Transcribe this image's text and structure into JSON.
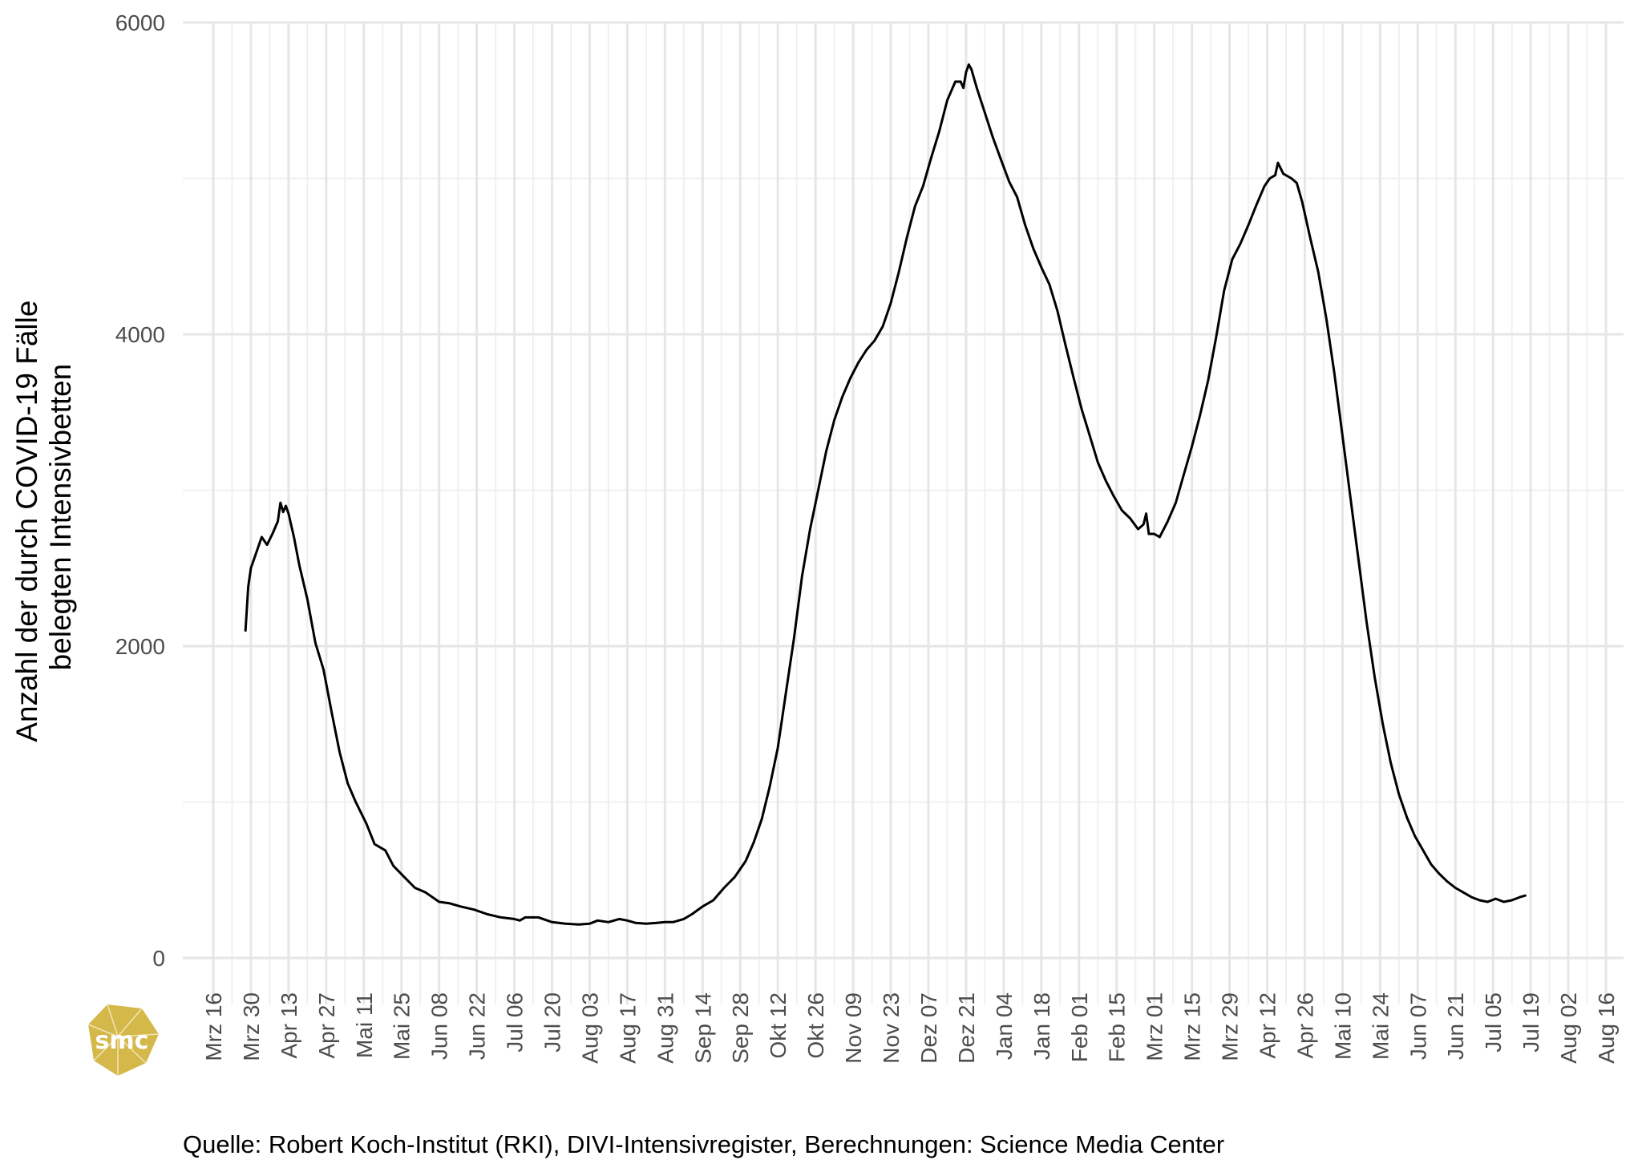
{
  "chart_data": {
    "type": "line",
    "xlabel": "",
    "ylabel": [
      "Anzahl der durch COVID-19 Fälle",
      "belegten Intensivbetten"
    ],
    "ylim": [
      -300,
      6000
    ],
    "y_ticks": [
      0,
      2000,
      4000,
      6000
    ],
    "y_minor_gridlines": [
      1000,
      3000,
      5000
    ],
    "grid": true,
    "x_ticks": [
      {
        "date": "2020-03-16",
        "label": "Mrz 16"
      },
      {
        "date": "2020-03-30",
        "label": "Mrz 30"
      },
      {
        "date": "2020-04-13",
        "label": "Apr 13"
      },
      {
        "date": "2020-04-27",
        "label": "Apr 27"
      },
      {
        "date": "2020-05-11",
        "label": "Mai 11"
      },
      {
        "date": "2020-05-25",
        "label": "Mai 25"
      },
      {
        "date": "2020-06-08",
        "label": "Jun 08"
      },
      {
        "date": "2020-06-22",
        "label": "Jun 22"
      },
      {
        "date": "2020-07-06",
        "label": "Jul 06"
      },
      {
        "date": "2020-07-20",
        "label": "Jul 20"
      },
      {
        "date": "2020-08-03",
        "label": "Aug 03"
      },
      {
        "date": "2020-08-17",
        "label": "Aug 17"
      },
      {
        "date": "2020-08-31",
        "label": "Aug 31"
      },
      {
        "date": "2020-09-14",
        "label": "Sep 14"
      },
      {
        "date": "2020-09-28",
        "label": "Sep 28"
      },
      {
        "date": "2020-10-12",
        "label": "Okt 12"
      },
      {
        "date": "2020-10-26",
        "label": "Okt 26"
      },
      {
        "date": "2020-11-09",
        "label": "Nov 09"
      },
      {
        "date": "2020-11-23",
        "label": "Nov 23"
      },
      {
        "date": "2020-12-07",
        "label": "Dez 07"
      },
      {
        "date": "2020-12-21",
        "label": "Dez 21"
      },
      {
        "date": "2021-01-04",
        "label": "Jan 04"
      },
      {
        "date": "2021-01-18",
        "label": "Jan 18"
      },
      {
        "date": "2021-02-01",
        "label": "Feb 01"
      },
      {
        "date": "2021-02-15",
        "label": "Feb 15"
      },
      {
        "date": "2021-03-01",
        "label": "Mrz 01"
      },
      {
        "date": "2021-03-15",
        "label": "Mrz 15"
      },
      {
        "date": "2021-03-29",
        "label": "Mrz 29"
      },
      {
        "date": "2021-04-12",
        "label": "Apr 12"
      },
      {
        "date": "2021-04-26",
        "label": "Apr 26"
      },
      {
        "date": "2021-05-10",
        "label": "Mai 10"
      },
      {
        "date": "2021-05-24",
        "label": "Mai 24"
      },
      {
        "date": "2021-06-07",
        "label": "Jun 07"
      },
      {
        "date": "2021-06-21",
        "label": "Jun 21"
      },
      {
        "date": "2021-07-05",
        "label": "Jul 05"
      },
      {
        "date": "2021-07-19",
        "label": "Jul 19"
      },
      {
        "date": "2021-08-02",
        "label": "Aug 02"
      },
      {
        "date": "2021-08-16",
        "label": "Aug 16"
      }
    ],
    "series": [
      {
        "color": "#000000",
        "points": [
          [
            "2020-03-28",
            2100
          ],
          [
            "2020-03-29",
            2380
          ],
          [
            "2020-03-30",
            2500
          ],
          [
            "2020-04-01",
            2600
          ],
          [
            "2020-04-03",
            2700
          ],
          [
            "2020-04-05",
            2650
          ],
          [
            "2020-04-07",
            2720
          ],
          [
            "2020-04-09",
            2800
          ],
          [
            "2020-04-10",
            2920
          ],
          [
            "2020-04-11",
            2860
          ],
          [
            "2020-04-12",
            2900
          ],
          [
            "2020-04-13",
            2850
          ],
          [
            "2020-04-15",
            2700
          ],
          [
            "2020-04-17",
            2520
          ],
          [
            "2020-04-20",
            2300
          ],
          [
            "2020-04-23",
            2020
          ],
          [
            "2020-04-26",
            1850
          ],
          [
            "2020-04-29",
            1580
          ],
          [
            "2020-05-02",
            1320
          ],
          [
            "2020-05-05",
            1120
          ],
          [
            "2020-05-08",
            1000
          ],
          [
            "2020-05-12",
            860
          ],
          [
            "2020-05-15",
            730
          ],
          [
            "2020-05-19",
            690
          ],
          [
            "2020-05-22",
            590
          ],
          [
            "2020-05-26",
            520
          ],
          [
            "2020-05-30",
            450
          ],
          [
            "2020-06-03",
            420
          ],
          [
            "2020-06-08",
            360
          ],
          [
            "2020-06-12",
            350
          ],
          [
            "2020-06-16",
            330
          ],
          [
            "2020-06-21",
            310
          ],
          [
            "2020-06-26",
            280
          ],
          [
            "2020-07-01",
            260
          ],
          [
            "2020-07-06",
            250
          ],
          [
            "2020-07-08",
            240
          ],
          [
            "2020-07-10",
            260
          ],
          [
            "2020-07-15",
            260
          ],
          [
            "2020-07-20",
            230
          ],
          [
            "2020-07-25",
            220
          ],
          [
            "2020-07-30",
            215
          ],
          [
            "2020-08-03",
            220
          ],
          [
            "2020-08-06",
            240
          ],
          [
            "2020-08-10",
            230
          ],
          [
            "2020-08-14",
            250
          ],
          [
            "2020-08-17",
            240
          ],
          [
            "2020-08-20",
            225
          ],
          [
            "2020-08-24",
            220
          ],
          [
            "2020-08-28",
            225
          ],
          [
            "2020-08-31",
            230
          ],
          [
            "2020-09-03",
            230
          ],
          [
            "2020-09-07",
            250
          ],
          [
            "2020-09-10",
            280
          ],
          [
            "2020-09-14",
            330
          ],
          [
            "2020-09-18",
            370
          ],
          [
            "2020-09-22",
            450
          ],
          [
            "2020-09-26",
            520
          ],
          [
            "2020-09-30",
            620
          ],
          [
            "2020-10-03",
            740
          ],
          [
            "2020-10-06",
            890
          ],
          [
            "2020-10-09",
            1100
          ],
          [
            "2020-10-12",
            1350
          ],
          [
            "2020-10-15",
            1700
          ],
          [
            "2020-10-18",
            2050
          ],
          [
            "2020-10-21",
            2450
          ],
          [
            "2020-10-24",
            2750
          ],
          [
            "2020-10-27",
            3000
          ],
          [
            "2020-10-30",
            3250
          ],
          [
            "2020-11-02",
            3450
          ],
          [
            "2020-11-05",
            3600
          ],
          [
            "2020-11-08",
            3720
          ],
          [
            "2020-11-11",
            3820
          ],
          [
            "2020-11-14",
            3900
          ],
          [
            "2020-11-17",
            3960
          ],
          [
            "2020-11-20",
            4050
          ],
          [
            "2020-11-23",
            4200
          ],
          [
            "2020-11-26",
            4400
          ],
          [
            "2020-11-29",
            4620
          ],
          [
            "2020-12-02",
            4820
          ],
          [
            "2020-12-05",
            4950
          ],
          [
            "2020-12-08",
            5130
          ],
          [
            "2020-12-11",
            5300
          ],
          [
            "2020-12-14",
            5500
          ],
          [
            "2020-12-17",
            5620
          ],
          [
            "2020-12-19",
            5620
          ],
          [
            "2020-12-20",
            5580
          ],
          [
            "2020-12-21",
            5680
          ],
          [
            "2020-12-22",
            5730
          ],
          [
            "2020-12-23",
            5700
          ],
          [
            "2020-12-25",
            5580
          ],
          [
            "2020-12-28",
            5420
          ],
          [
            "2020-12-31",
            5260
          ],
          [
            "2021-01-03",
            5120
          ],
          [
            "2021-01-06",
            4980
          ],
          [
            "2021-01-09",
            4880
          ],
          [
            "2021-01-12",
            4700
          ],
          [
            "2021-01-15",
            4550
          ],
          [
            "2021-01-18",
            4430
          ],
          [
            "2021-01-21",
            4320
          ],
          [
            "2021-01-24",
            4150
          ],
          [
            "2021-01-27",
            3930
          ],
          [
            "2021-01-30",
            3720
          ],
          [
            "2021-02-02",
            3520
          ],
          [
            "2021-02-05",
            3350
          ],
          [
            "2021-02-08",
            3180
          ],
          [
            "2021-02-11",
            3060
          ],
          [
            "2021-02-14",
            2960
          ],
          [
            "2021-02-17",
            2870
          ],
          [
            "2021-02-20",
            2820
          ],
          [
            "2021-02-23",
            2750
          ],
          [
            "2021-02-25",
            2780
          ],
          [
            "2021-02-26",
            2850
          ],
          [
            "2021-02-27",
            2720
          ],
          [
            "2021-03-01",
            2720
          ],
          [
            "2021-03-03",
            2700
          ],
          [
            "2021-03-06",
            2800
          ],
          [
            "2021-03-09",
            2920
          ],
          [
            "2021-03-12",
            3100
          ],
          [
            "2021-03-15",
            3280
          ],
          [
            "2021-03-18",
            3480
          ],
          [
            "2021-03-21",
            3700
          ],
          [
            "2021-03-24",
            3980
          ],
          [
            "2021-03-27",
            4280
          ],
          [
            "2021-03-30",
            4480
          ],
          [
            "2021-04-02",
            4580
          ],
          [
            "2021-04-05",
            4700
          ],
          [
            "2021-04-08",
            4830
          ],
          [
            "2021-04-11",
            4950
          ],
          [
            "2021-04-13",
            5000
          ],
          [
            "2021-04-15",
            5020
          ],
          [
            "2021-04-16",
            5100
          ],
          [
            "2021-04-18",
            5030
          ],
          [
            "2021-04-21",
            5000
          ],
          [
            "2021-04-23",
            4970
          ],
          [
            "2021-04-25",
            4850
          ],
          [
            "2021-04-28",
            4620
          ],
          [
            "2021-05-01",
            4400
          ],
          [
            "2021-05-04",
            4100
          ],
          [
            "2021-05-07",
            3750
          ],
          [
            "2021-05-10",
            3350
          ],
          [
            "2021-05-13",
            2950
          ],
          [
            "2021-05-16",
            2550
          ],
          [
            "2021-05-19",
            2150
          ],
          [
            "2021-05-22",
            1800
          ],
          [
            "2021-05-25",
            1500
          ],
          [
            "2021-05-28",
            1250
          ],
          [
            "2021-05-31",
            1050
          ],
          [
            "2021-06-03",
            900
          ],
          [
            "2021-06-06",
            780
          ],
          [
            "2021-06-09",
            690
          ],
          [
            "2021-06-12",
            600
          ],
          [
            "2021-06-15",
            540
          ],
          [
            "2021-06-18",
            490
          ],
          [
            "2021-06-21",
            450
          ],
          [
            "2021-06-24",
            420
          ],
          [
            "2021-06-27",
            390
          ],
          [
            "2021-06-30",
            370
          ],
          [
            "2021-07-03",
            360
          ],
          [
            "2021-07-06",
            380
          ],
          [
            "2021-07-09",
            360
          ],
          [
            "2021-07-12",
            370
          ],
          [
            "2021-07-15",
            390
          ],
          [
            "2021-07-17",
            400
          ]
        ]
      }
    ]
  },
  "caption": "Quelle: Robert Koch-Institut (RKI), DIVI-Intensivregister, Berechnungen: Science Media Center",
  "logo": {
    "text": "smc",
    "color": "#d4b84a"
  }
}
